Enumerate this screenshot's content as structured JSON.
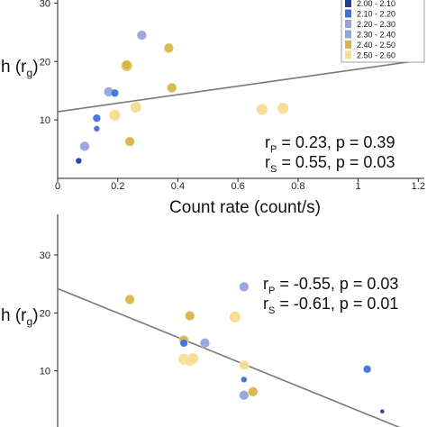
{
  "colors": {
    "c1": "#1f3f9e",
    "c2": "#3f72d6",
    "c3": "#93a3dd",
    "c4": "#d8b545",
    "c5": "#f7dc8f",
    "fit_line": "#7a7a7a"
  },
  "legend": {
    "entries": [
      {
        "label": "2.00 - 2.10",
        "color_key": "c1"
      },
      {
        "label": "2.10 - 2.20",
        "color_key": "c2"
      },
      {
        "label": "2.20 - 2.30",
        "color_key": "c3"
      },
      {
        "label": "2.30 - 2.40",
        "color_key": "c3"
      },
      {
        "label": "2.40 - 2.50",
        "color_key": "c4"
      },
      {
        "label": "2.50 - 2.60",
        "color_key": "c5"
      }
    ]
  },
  "chart_data": [
    {
      "type": "scatter",
      "xlabel": "Count rate (count/s)",
      "ylabel": "h (r",
      "ylabel_sub": "g",
      "ylabel_close": ")",
      "xlim": [
        0,
        1.22
      ],
      "ylim": [
        0,
        37
      ],
      "xticks": [
        0,
        0.2,
        0.4,
        0.6,
        0.8,
        1,
        1.2
      ],
      "xtick_labels": [
        "0",
        "0.2",
        "0.4",
        "0.6",
        "0.8",
        "1",
        "1.2"
      ],
      "yticks": [
        10,
        20,
        30
      ],
      "ytick_labels": [
        "10",
        "20",
        "30"
      ],
      "stats": [
        {
          "sym": "r",
          "sub": "P",
          "text": " = 0.23, p = 0.39"
        },
        {
          "sym": "r",
          "sub": "S",
          "text": " = 0.55, p = 0.03"
        }
      ],
      "fit_line": {
        "x": [
          0,
          1.22
        ],
        "y": [
          11.4,
          20.3
        ]
      },
      "points": [
        {
          "x": 0.07,
          "y": 3.0,
          "size": 2,
          "color_key": "c1"
        },
        {
          "x": 0.09,
          "y": 5.5,
          "size": 4,
          "color_key": "c3"
        },
        {
          "x": 0.13,
          "y": 8.5,
          "size": 2,
          "color_key": "c2"
        },
        {
          "x": 0.13,
          "y": 10.3,
          "size": 3,
          "color_key": "c2"
        },
        {
          "x": 0.17,
          "y": 14.8,
          "size": 4,
          "color_key": "c3"
        },
        {
          "x": 0.19,
          "y": 14.6,
          "size": 3,
          "color_key": "c2"
        },
        {
          "x": 0.19,
          "y": 10.8,
          "size": 5,
          "color_key": "c5"
        },
        {
          "x": 0.23,
          "y": 19.3,
          "size": 5,
          "color_key": "c4"
        },
        {
          "x": 0.23,
          "y": 19.4,
          "size": 4,
          "color_key": "c4"
        },
        {
          "x": 0.24,
          "y": 6.3,
          "size": 4,
          "color_key": "c4"
        },
        {
          "x": 0.26,
          "y": 12.2,
          "size": 5,
          "color_key": "c5"
        },
        {
          "x": 0.28,
          "y": 24.5,
          "size": 4,
          "color_key": "c3"
        },
        {
          "x": 0.37,
          "y": 22.3,
          "size": 4,
          "color_key": "c4"
        },
        {
          "x": 0.38,
          "y": 15.5,
          "size": 4,
          "color_key": "c4"
        },
        {
          "x": 0.68,
          "y": 11.8,
          "size": 5,
          "color_key": "c5"
        },
        {
          "x": 0.75,
          "y": 12.0,
          "size": 5,
          "color_key": "c5"
        }
      ]
    },
    {
      "type": "scatter",
      "xlabel": "",
      "ylabel": "h (r",
      "ylabel_sub": "g",
      "ylabel_close": ")",
      "xlim": [
        0,
        1.22
      ],
      "ylim": [
        0,
        37
      ],
      "yticks": [
        10,
        20,
        30
      ],
      "ytick_labels": [
        "10",
        "20",
        "30"
      ],
      "stats": [
        {
          "sym": "r",
          "sub": "P",
          "text": " = -0.55, p = 0.03"
        },
        {
          "sym": "r",
          "sub": "S",
          "text": " = -0.61, p = 0.01"
        }
      ],
      "fit_line": {
        "x": [
          0,
          1.22
        ],
        "y": [
          24.2,
          -1.5
        ]
      },
      "points": [
        {
          "x": 0.24,
          "y": 22.3,
          "size": 4,
          "color_key": "c4"
        },
        {
          "x": 0.44,
          "y": 19.5,
          "size": 4,
          "color_key": "c4"
        },
        {
          "x": 0.59,
          "y": 19.3,
          "size": 5,
          "color_key": "c5"
        },
        {
          "x": 0.62,
          "y": 24.5,
          "size": 4,
          "color_key": "c3"
        },
        {
          "x": 0.42,
          "y": 15.3,
          "size": 4,
          "color_key": "c4"
        },
        {
          "x": 0.42,
          "y": 14.8,
          "size": 3,
          "color_key": "c2"
        },
        {
          "x": 0.49,
          "y": 14.8,
          "size": 4,
          "color_key": "c3"
        },
        {
          "x": 0.42,
          "y": 12.0,
          "size": 5,
          "color_key": "c5"
        },
        {
          "x": 0.44,
          "y": 11.8,
          "size": 5,
          "color_key": "c5"
        },
        {
          "x": 0.45,
          "y": 12.1,
          "size": 5,
          "color_key": "c5"
        },
        {
          "x": 0.62,
          "y": 11.0,
          "size": 4,
          "color_key": "c5"
        },
        {
          "x": 0.62,
          "y": 8.5,
          "size": 2,
          "color_key": "c2"
        },
        {
          "x": 0.62,
          "y": 5.8,
          "size": 4,
          "color_key": "c3"
        },
        {
          "x": 0.65,
          "y": 6.4,
          "size": 4,
          "color_key": "c4"
        },
        {
          "x": 1.03,
          "y": 10.3,
          "size": 3,
          "color_key": "c2"
        },
        {
          "x": 1.08,
          "y": 3.0,
          "size": 1,
          "color_key": "c1"
        }
      ]
    }
  ]
}
